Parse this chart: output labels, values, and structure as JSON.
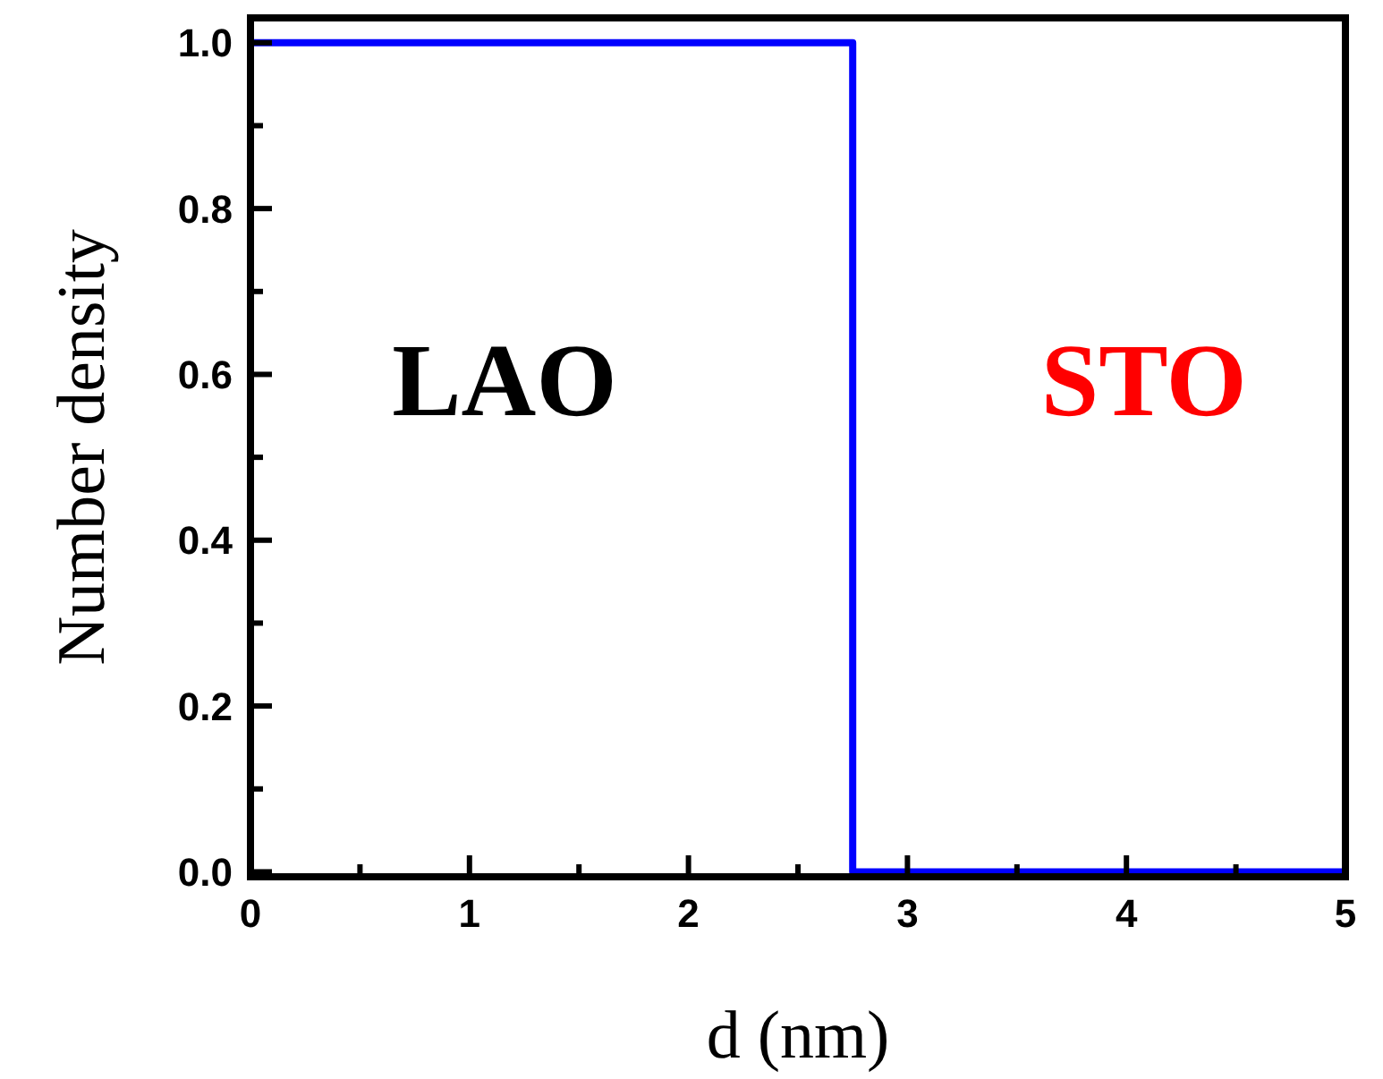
{
  "chart_data": {
    "type": "line",
    "xlabel": "d (nm)",
    "ylabel": "Number density",
    "series": [
      {
        "color": "#0000ff",
        "x": [
          0,
          2.75,
          2.75,
          5
        ],
        "values": [
          1,
          1,
          0,
          0
        ]
      }
    ],
    "xlim": [
      0,
      5
    ],
    "ylim": [
      -0.006,
      1.03
    ],
    "xticks": [
      0,
      {
        "value": 0.5,
        "label": null
      },
      1,
      {
        "value": 1.5,
        "label": null
      },
      2,
      {
        "value": 2.5,
        "label": null
      },
      3,
      {
        "value": 3.5,
        "label": null
      },
      4,
      {
        "value": 4.5,
        "label": null
      },
      5
    ],
    "yticks": [
      {
        "value": 0,
        "label": "0.0"
      },
      {
        "value": 0.1,
        "label": null
      },
      {
        "value": 0.2,
        "label": "0.2"
      },
      {
        "value": 0.3,
        "label": null
      },
      {
        "value": 0.4,
        "label": "0.4"
      },
      {
        "value": 0.5,
        "label": null
      },
      {
        "value": 0.6,
        "label": "0.6"
      },
      {
        "value": 0.7,
        "label": null
      },
      {
        "value": 0.8,
        "label": "0.8"
      },
      {
        "value": 0.9,
        "label": null
      },
      {
        "value": 1,
        "label": "1.0"
      }
    ],
    "annotations": [
      "LAO",
      "STO"
    ],
    "grid": false,
    "marker": "none",
    "line_style": "solid"
  }
}
